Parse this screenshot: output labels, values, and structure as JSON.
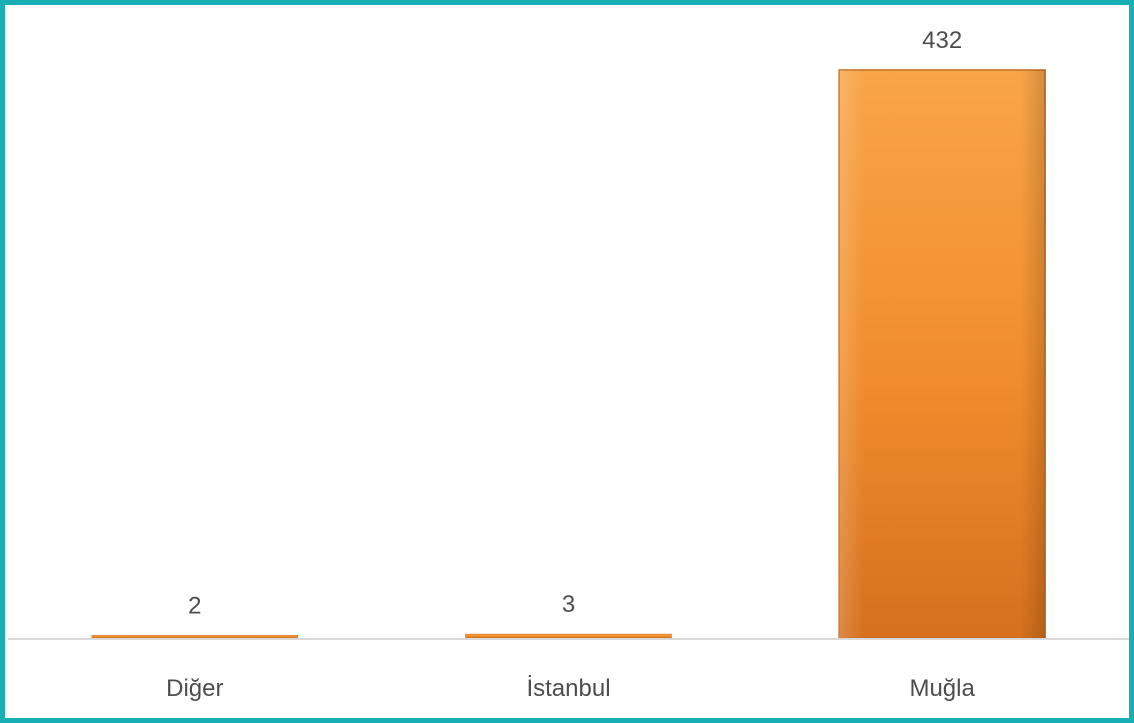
{
  "chart_data": {
    "type": "bar",
    "categories": [
      "Diğer",
      "İstanbul",
      "Muğla"
    ],
    "values": [
      2,
      3,
      432
    ],
    "title": "",
    "xlabel": "",
    "ylabel": "",
    "ylim": [
      0,
      432
    ],
    "grid": false,
    "legend": "none",
    "data_labels": true,
    "colors": {
      "bar_light": "#f7a24a",
      "bar_dark": "#d8701c",
      "bar_edge": "#c9691a",
      "frame": "#17aeb4",
      "axis": "#d9d9d9",
      "text": "#4d4d4d"
    }
  }
}
